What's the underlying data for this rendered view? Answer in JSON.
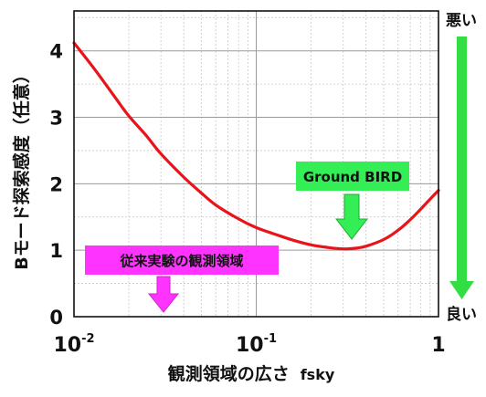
{
  "chart_data": {
    "type": "line",
    "xlabel": "観測領域の広さ",
    "xlabel_symbol": "fsky",
    "ylabel": "Bモード探索感度（任意）",
    "xscale": "log",
    "xlim": [
      0.01,
      1
    ],
    "ylim": [
      0,
      4.6
    ],
    "x_ticks": [
      {
        "base": "10",
        "exp": "-2",
        "value": 0.01
      },
      {
        "base": "10",
        "exp": "-1",
        "value": 0.1
      },
      {
        "base": "1",
        "exp": "",
        "value": 1
      }
    ],
    "y_ticks": [
      0,
      1,
      2,
      3,
      4
    ],
    "grid": true,
    "series": [
      {
        "color": "#e8141a",
        "x": [
          0.01,
          0.013,
          0.017,
          0.02,
          0.025,
          0.03,
          0.04,
          0.05,
          0.06,
          0.08,
          0.1,
          0.13,
          0.16,
          0.2,
          0.25,
          0.3,
          0.35,
          0.4,
          0.5,
          0.6,
          0.7,
          0.8,
          0.9,
          1.0
        ],
        "y": [
          4.12,
          3.72,
          3.28,
          3.02,
          2.72,
          2.45,
          2.1,
          1.86,
          1.68,
          1.47,
          1.34,
          1.23,
          1.15,
          1.08,
          1.04,
          1.02,
          1.03,
          1.06,
          1.16,
          1.3,
          1.46,
          1.62,
          1.77,
          1.9
        ]
      }
    ],
    "annotations": [
      {
        "text": "Ground BIRD",
        "box_color": "#33ee55",
        "arrow_color": "#33ee55",
        "x": 0.32
      },
      {
        "text": "従来実験の観測領域",
        "box_color": "#ff33ff",
        "arrow_color": "#ff33ff",
        "x": 0.032
      }
    ],
    "scale_indicator": {
      "top_label": "悪い",
      "bottom_label": "良い",
      "color": "#33dd44"
    }
  }
}
